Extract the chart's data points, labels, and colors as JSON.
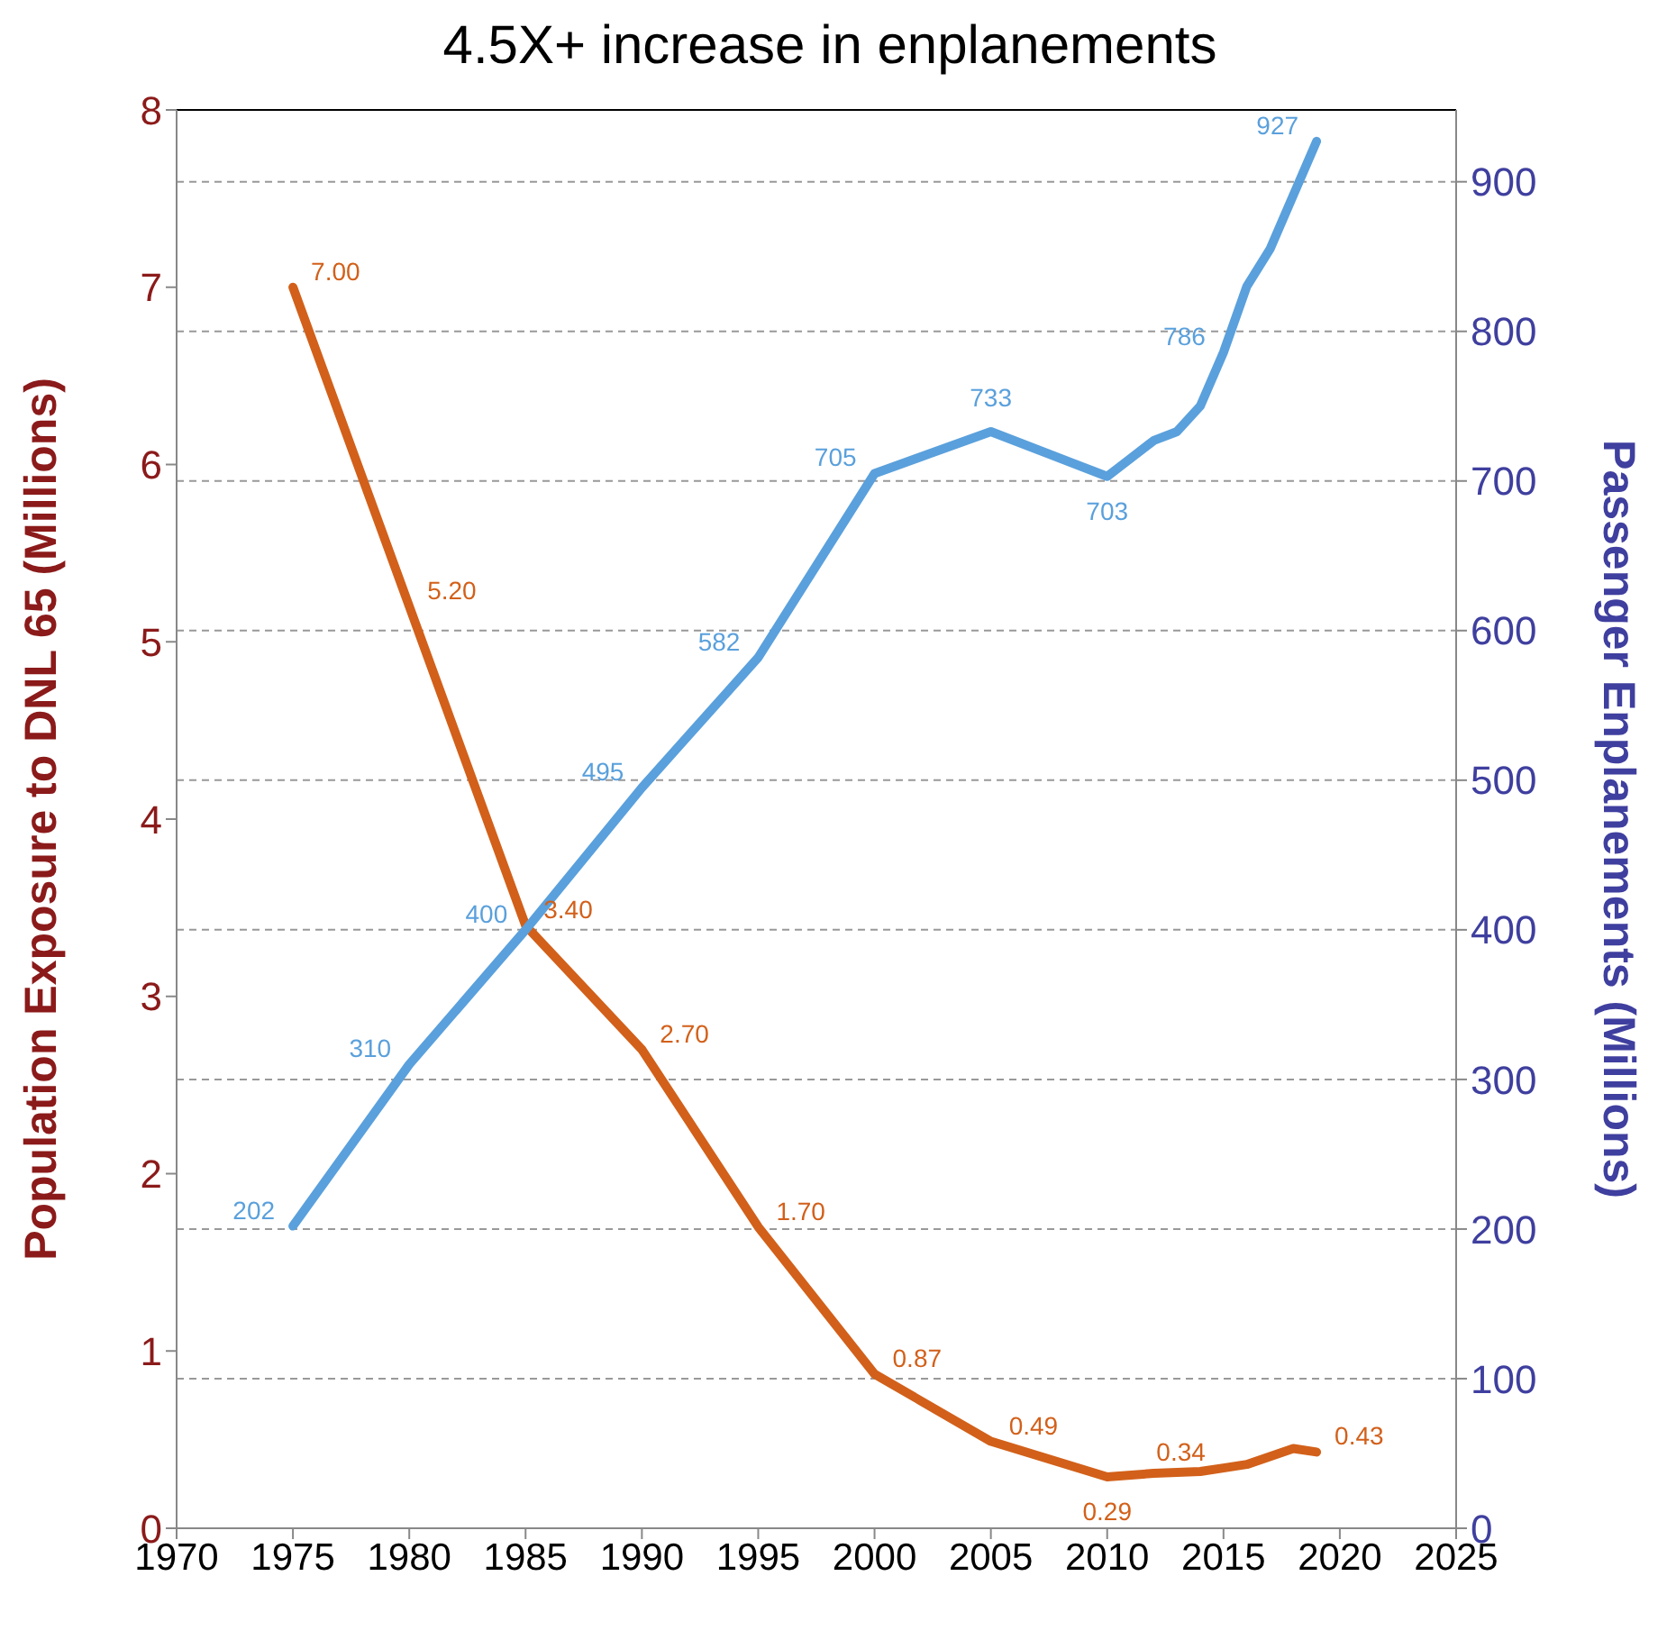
{
  "chart_data": {
    "type": "line",
    "title": "4.5X+ increase in enplanements",
    "ylabel": "Population Exposure to DNL 65 (Millions)",
    "y2label": "Passenger Enplanements (Millions)",
    "xlim": [
      1970,
      2025
    ],
    "xticks": [
      1970,
      1975,
      1980,
      1985,
      1990,
      1995,
      2000,
      2005,
      2010,
      2015,
      2020,
      2025
    ],
    "ylim": [
      0,
      8
    ],
    "yticks": [
      0,
      1,
      2,
      3,
      4,
      5,
      6,
      7,
      8
    ],
    "y2lim": [
      0,
      948
    ],
    "y2ticks": [
      0,
      100,
      200,
      300,
      400,
      500,
      600,
      700,
      800,
      900
    ],
    "grid": "y2",
    "marker": "none",
    "line_style": "solid",
    "series": [
      {
        "color": "#d2601a",
        "x": [
          1975,
          1980,
          1985,
          1990,
          1995,
          2000,
          2005,
          2010,
          2012,
          2014,
          2015,
          2016,
          2018,
          2019
        ],
        "values": [
          7.0,
          5.2,
          3.4,
          2.7,
          1.7,
          0.87,
          0.49,
          0.29,
          0.31,
          0.32,
          0.34,
          0.36,
          0.45,
          0.43
        ],
        "value_labels": [
          "7.00",
          "5.20",
          "3.40",
          "2.70",
          "1.70",
          "0.87",
          "0.49",
          "0.29",
          null,
          null,
          "0.34",
          null,
          null,
          "0.43"
        ]
      },
      {
        "color": "#5aa0dc",
        "axis": "y2",
        "x": [
          1975,
          1980,
          1985,
          1990,
          1995,
          2000,
          2005,
          2010,
          2012,
          2013,
          2014,
          2015,
          2016,
          2017,
          2019
        ],
        "values": [
          202,
          310,
          400,
          495,
          582,
          705,
          733,
          703,
          727,
          733,
          750,
          786,
          830,
          855,
          927
        ],
        "value_labels": [
          "202",
          "310",
          "400",
          "495",
          "582",
          "705",
          "733",
          "703",
          null,
          null,
          null,
          "786",
          null,
          null,
          "927"
        ]
      }
    ]
  }
}
